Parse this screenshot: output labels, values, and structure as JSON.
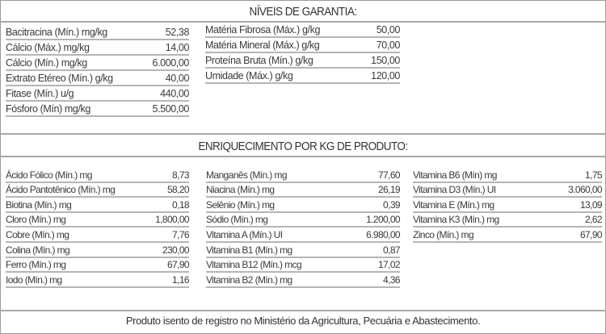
{
  "section1": {
    "title": "NÍVEIS DE GARANTIA:",
    "columns": [
      [
        {
          "label": "Bacitracina (Mín.) mg/kg",
          "value": "52,38"
        },
        {
          "label": "Cálcio (Máx.) mg/kg",
          "value": "14,00"
        },
        {
          "label": "Cálcio (Mín.) mg/kg",
          "value": "6.000,00"
        },
        {
          "label": "Extrato Etéreo (Mín.) g/kg",
          "value": "40,00"
        },
        {
          "label": "Fitase (Mín.) u/g",
          "value": "440,00"
        },
        {
          "label": "Fósforo (Mín) mg/kg",
          "value": "5.500,00"
        }
      ],
      [
        {
          "label": "Matéria Fibrosa (Máx.) g/kg",
          "value": "50,00"
        },
        {
          "label": "Matéria Mineral (Máx.) g/kg",
          "value": "70,00"
        },
        {
          "label": "Proteína Bruta (Mín.) g/kg",
          "value": "150,00"
        },
        {
          "label": "Umidade (Máx.) g/kg",
          "value": "120,00"
        }
      ]
    ]
  },
  "section2": {
    "title": "ENRIQUECIMENTO POR KG DE PRODUTO:",
    "columns": [
      [
        {
          "label": "Ácido Fólico (Mín.) mg",
          "value": "8,73"
        },
        {
          "label": "Ácido Pantotênico (Mín.) mg",
          "value": "58,20"
        },
        {
          "label": "Biotina (Mín.) mg",
          "value": "0,18"
        },
        {
          "label": "Cloro (Mín.) mg",
          "value": "1,800,00"
        },
        {
          "label": "Cobre (Mín.) mg",
          "value": "7,76"
        },
        {
          "label": "Colina (Mín.) mg",
          "value": "230,00"
        },
        {
          "label": "Ferro (Mín.) mg",
          "value": "67,90"
        },
        {
          "label": "Iodo (Mín.) mg",
          "value": "1,16"
        }
      ],
      [
        {
          "label": "Manganês (Mín.) mg",
          "value": "77,60"
        },
        {
          "label": "Niacina (Mín.) mg",
          "value": "26,19"
        },
        {
          "label": "Selênio (Mín.) mg",
          "value": "0,39"
        },
        {
          "label": "Sódio (Mín.) mg",
          "value": "1.200,00"
        },
        {
          "label": "Vitamina A (Mín.) UI",
          "value": "6.980,00"
        },
        {
          "label": "Vitamina B1 (Mín.)  mg",
          "value": "0,87"
        },
        {
          "label": "Vitamina B12 (Mín.) mcg",
          "value": "17,02"
        },
        {
          "label": "Vitamina B2 (Mín.) mg",
          "value": "4,36"
        }
      ],
      [
        {
          "label": "Vitamina B6 (Mín) mg",
          "value": "1,75"
        },
        {
          "label": "Vitamina D3 (Mín.) UI",
          "value": "3.060,00"
        },
        {
          "label": "Vitamina E (Mín.) mg",
          "value": "13,09"
        },
        {
          "label": "Vitamina K3 (Mín.) mg",
          "value": "2,62"
        },
        {
          "label": "Zinco (Mín.) mg",
          "value": "67,90"
        }
      ]
    ]
  },
  "footer": "Produto isento de registro no Ministério da Agricultura, Pecuária e Abastecimento."
}
